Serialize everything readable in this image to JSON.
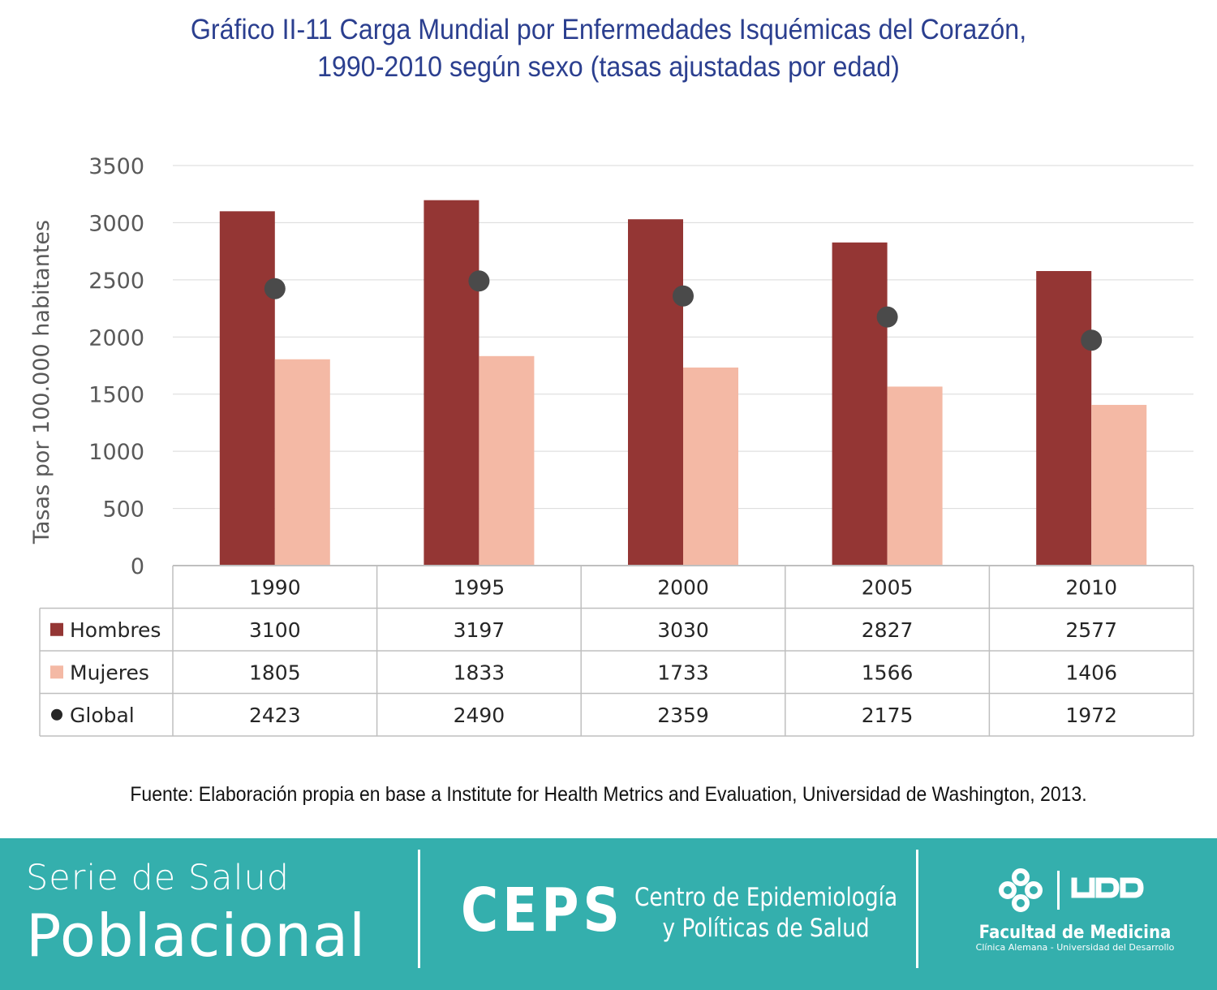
{
  "title": {
    "line1": "Gráfico II-11 Carga Mundial por Enfermedades Isquémicas del Corazón,",
    "line2": "1990-2010 según sexo (tasas ajustadas por edad)"
  },
  "chart_data": {
    "type": "bar",
    "categories": [
      "1990",
      "1995",
      "2000",
      "2005",
      "2010"
    ],
    "series": [
      {
        "name": "Hombres",
        "kind": "bar",
        "color": "#943634",
        "values": [
          3100,
          3197,
          3030,
          2827,
          2577
        ]
      },
      {
        "name": "Mujeres",
        "kind": "bar",
        "color": "#f4b9a5",
        "values": [
          1805,
          1833,
          1733,
          1566,
          1406
        ]
      },
      {
        "name": "Global",
        "kind": "marker",
        "color": "#4a4a4a",
        "values": [
          2423,
          2490,
          2359,
          2175,
          1972
        ]
      }
    ],
    "ylabel": "Tasas por 100.000 habitantes",
    "ylim": [
      0,
      3500
    ],
    "yticks": [
      0,
      500,
      1000,
      1500,
      2000,
      2500,
      3000,
      3500
    ],
    "grid": true,
    "legend": "data-table-below"
  },
  "source": "Fuente: Elaboración propia en base a Institute for Health Metrics and Evaluation, Universidad de Washington, 2013.",
  "footer": {
    "serie_line1": "Serie de Salud",
    "serie_line2": "Poblacional",
    "ceps": "CEPS",
    "ceps_name_line1": "Centro de Epidemiología",
    "ceps_name_line2": "y Políticas de Salud",
    "udd_logo": "UDD",
    "faculty": "Facultad de Medicina",
    "faculty_sub": "Clínica Alemana - Universidad del Desarrollo",
    "bg_color": "#34afad"
  }
}
